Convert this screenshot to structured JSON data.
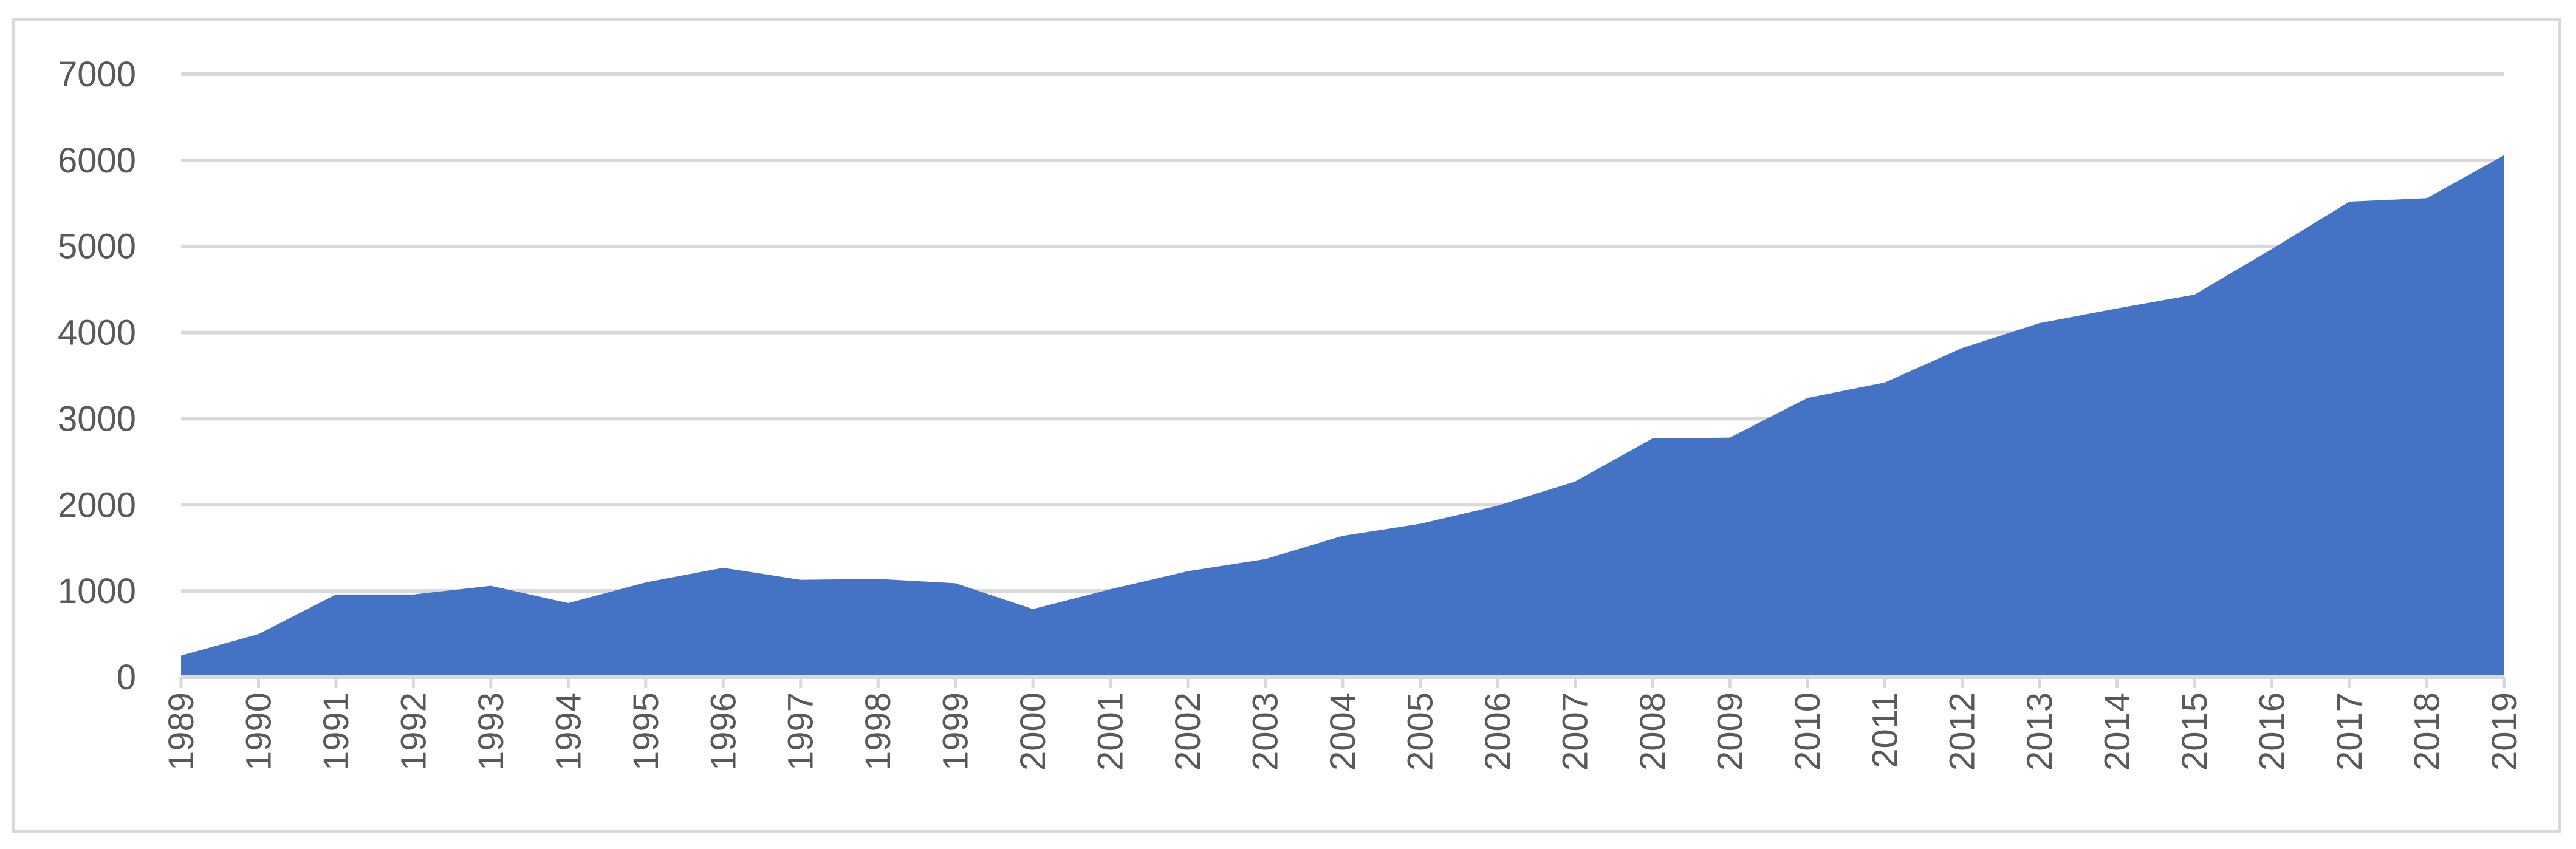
{
  "chart_data": {
    "type": "area",
    "title": "",
    "xlabel": "",
    "ylabel": "",
    "x": [
      "1989",
      "1990",
      "1991",
      "1992",
      "1993",
      "1994",
      "1995",
      "1996",
      "1997",
      "1998",
      "1999",
      "2000",
      "2001",
      "2002",
      "2003",
      "2004",
      "2005",
      "2006",
      "2007",
      "2008",
      "2009",
      "2010",
      "2011",
      "2012",
      "2013",
      "2014",
      "2015",
      "2016",
      "2017",
      "2018",
      "2019"
    ],
    "series": [
      {
        "values": [
          250,
          500,
          960,
          960,
          1060,
          860,
          1100,
          1270,
          1130,
          1140,
          1090,
          790,
          1020,
          1230,
          1370,
          1640,
          1780,
          1990,
          2270,
          2770,
          2780,
          3240,
          3420,
          3820,
          4110,
          4280,
          4440,
          4970,
          5520,
          5560,
          6060
        ],
        "color": "#4472c4"
      }
    ],
    "ylim": [
      0,
      7000
    ],
    "yticks": [
      0,
      1000,
      2000,
      3000,
      4000,
      5000,
      6000,
      7000
    ],
    "grid": true,
    "legend": "none",
    "x_label_rotation": "vertical"
  }
}
